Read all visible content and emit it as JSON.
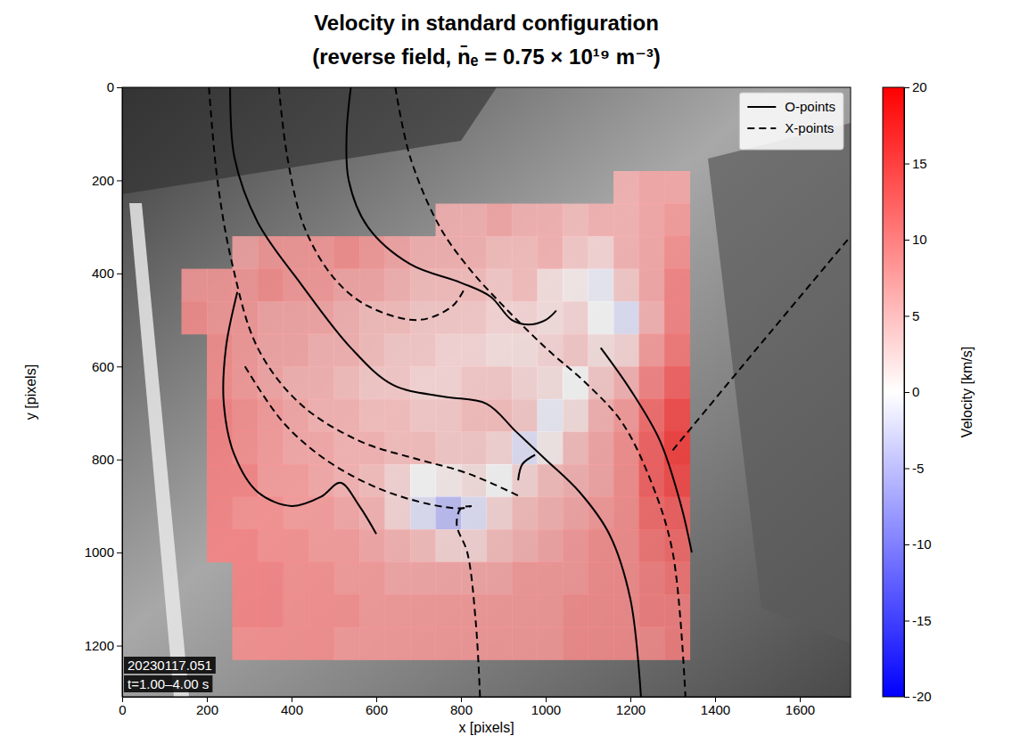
{
  "chart_data": {
    "type": "heatmap",
    "title": "Velocity in standard configuration",
    "subtitle": "(reverse field, n̄ₑ = 0.75 × 10¹⁹ m⁻³)",
    "x_label": "x [pixels]",
    "y_label": "y [pixels]",
    "xlim": [
      0,
      1720
    ],
    "ylim": [
      1310,
      0
    ],
    "xticks": [
      0,
      200,
      400,
      600,
      800,
      1000,
      1200,
      1400,
      1600
    ],
    "yticks": [
      0,
      200,
      400,
      600,
      800,
      1000,
      1200
    ],
    "grid": false,
    "legend": "upper right",
    "annotations": [
      "20230117.051",
      "t=1.00–4.00 s"
    ],
    "colorbar": {
      "label": "Velocity [km/s]",
      "range": [
        -20,
        20
      ],
      "ticks": [
        -20,
        -15,
        -10,
        -5,
        0,
        5,
        10,
        15,
        20
      ]
    },
    "cell_x": [
      140,
      200,
      260,
      320,
      380,
      440,
      500,
      560,
      620,
      680,
      740,
      800,
      860,
      920,
      980,
      1040,
      1100,
      1160,
      1220,
      1280,
      1340
    ],
    "cell_y": [
      180,
      250,
      320,
      390,
      460,
      530,
      600,
      670,
      740,
      810,
      880,
      950,
      1020,
      1090,
      1160,
      1230
    ],
    "cells": [
      [
        null,
        null,
        null,
        null,
        null,
        null,
        null,
        null,
        null,
        null,
        null,
        null,
        null,
        null,
        null,
        null,
        null,
        6,
        7,
        7
      ],
      [
        null,
        null,
        null,
        null,
        null,
        null,
        null,
        null,
        null,
        null,
        6,
        6,
        7,
        6,
        6,
        5,
        6,
        6,
        7,
        8
      ],
      [
        null,
        null,
        7,
        8,
        8,
        8,
        9,
        8,
        7,
        6,
        6,
        6,
        5,
        5,
        6,
        4,
        3,
        6,
        7,
        9
      ],
      [
        8,
        8,
        8,
        9,
        8,
        8,
        7,
        7,
        6,
        5,
        5,
        5,
        4,
        5,
        2,
        1,
        -1,
        4,
        7,
        10
      ],
      [
        9,
        8,
        8,
        7,
        7,
        7,
        6,
        5,
        5,
        4,
        4,
        4,
        3,
        3,
        2,
        3,
        0,
        -2,
        6,
        10
      ],
      [
        null,
        9,
        8,
        7,
        7,
        6,
        6,
        5,
        4,
        4,
        3,
        3,
        2,
        2,
        3,
        4,
        2,
        3,
        8,
        11
      ],
      [
        null,
        9,
        8,
        7,
        6,
        6,
        5,
        4,
        4,
        3,
        3,
        4,
        4,
        3,
        2,
        0,
        4,
        6,
        10,
        13
      ],
      [
        null,
        10,
        9,
        8,
        7,
        6,
        6,
        5,
        5,
        4,
        4,
        5,
        5,
        4,
        -1,
        2,
        6,
        8,
        12,
        15
      ],
      [
        null,
        10,
        9,
        8,
        7,
        7,
        6,
        6,
        5,
        5,
        4,
        4,
        3,
        -2,
        1,
        5,
        7,
        9,
        13,
        16
      ],
      [
        null,
        10,
        10,
        8,
        8,
        7,
        6,
        5,
        3,
        0,
        1,
        2,
        0,
        3,
        5,
        6,
        7,
        9,
        13,
        15
      ],
      [
        null,
        10,
        9,
        9,
        8,
        8,
        7,
        6,
        3,
        -2,
        -5,
        -2,
        3,
        5,
        6,
        7,
        8,
        9,
        12,
        13
      ],
      [
        null,
        10,
        10,
        9,
        9,
        8,
        8,
        7,
        6,
        5,
        3,
        3,
        5,
        6,
        7,
        8,
        9,
        9,
        11,
        12
      ],
      [
        null,
        null,
        10,
        10,
        9,
        9,
        8,
        8,
        7,
        7,
        7,
        7,
        7,
        8,
        8,
        8,
        9,
        9,
        10,
        11
      ],
      [
        null,
        null,
        10,
        10,
        9,
        9,
        9,
        8,
        8,
        8,
        8,
        8,
        8,
        8,
        8,
        9,
        9,
        9,
        10,
        10
      ],
      [
        null,
        null,
        9,
        9,
        9,
        9,
        8,
        8,
        8,
        8,
        8,
        8,
        8,
        8,
        8,
        9,
        9,
        9,
        9,
        10
      ]
    ],
    "series": [
      {
        "name": "O-points",
        "color": "#000000",
        "line_style": "solid",
        "lines": [
          {
            "x": [
              255,
              265,
              320,
              420,
              540,
              640,
              760,
              860,
              930,
              1000,
              1080,
              1150,
              1200,
              1225
            ],
            "y": [
              0,
              150,
              290,
              420,
              560,
              640,
              665,
              680,
              740,
              800,
              870,
              960,
              1100,
              1310
            ]
          },
          {
            "x": [
              540,
              530,
              535,
              580,
              680,
              800,
              870,
              920,
              960,
              1000,
              1025
            ],
            "y": [
              0,
              100,
              200,
              300,
              380,
              420,
              450,
              500,
              510,
              500,
              480
            ]
          },
          {
            "x": [
              272,
              245,
              240,
              265,
              320,
              400,
              470,
              515,
              560,
              600
            ],
            "y": [
              440,
              560,
              680,
              790,
              870,
              900,
              880,
              850,
              900,
              960
            ]
          },
          {
            "x": [
              935,
              945,
              975
            ],
            "y": [
              845,
              810,
              790
            ]
          },
          {
            "x": [
              1130,
              1200,
              1270,
              1320,
              1345
            ],
            "y": [
              560,
              650,
              760,
              900,
              1000
            ]
          }
        ]
      },
      {
        "name": "X-points",
        "color": "#000000",
        "line_style": "dashed",
        "lines": [
          {
            "x": [
              205,
              225,
              260,
              320,
              420,
              560,
              700,
              800,
              870,
              940
            ],
            "y": [
              0,
              200,
              380,
              560,
              680,
              760,
              800,
              825,
              850,
              880
            ]
          },
          {
            "x": [
              290,
              380,
              480,
              600,
              720,
              800,
              825
            ],
            "y": [
              600,
              720,
              800,
              860,
              895,
              905,
              900
            ]
          },
          {
            "x": [
              845,
              835,
              815,
              790,
              800,
              825
            ],
            "y": [
              1310,
              1150,
              1000,
              940,
              905,
              900
            ]
          },
          {
            "x": [
              370,
              390,
              430,
              500,
              580,
              700,
              780,
              810
            ],
            "y": [
              0,
              150,
              300,
              410,
              470,
              500,
              470,
              430
            ]
          },
          {
            "x": [
              645,
              680,
              750,
              820,
              900,
              1000,
              1100,
              1180,
              1250,
              1300,
              1330
            ],
            "y": [
              0,
              150,
              300,
              390,
              470,
              560,
              640,
              720,
              850,
              1000,
              1310
            ]
          },
          {
            "x": [
              1300,
              1500,
              1720
            ],
            "y": [
              780,
              560,
              320
            ]
          }
        ]
      }
    ]
  }
}
